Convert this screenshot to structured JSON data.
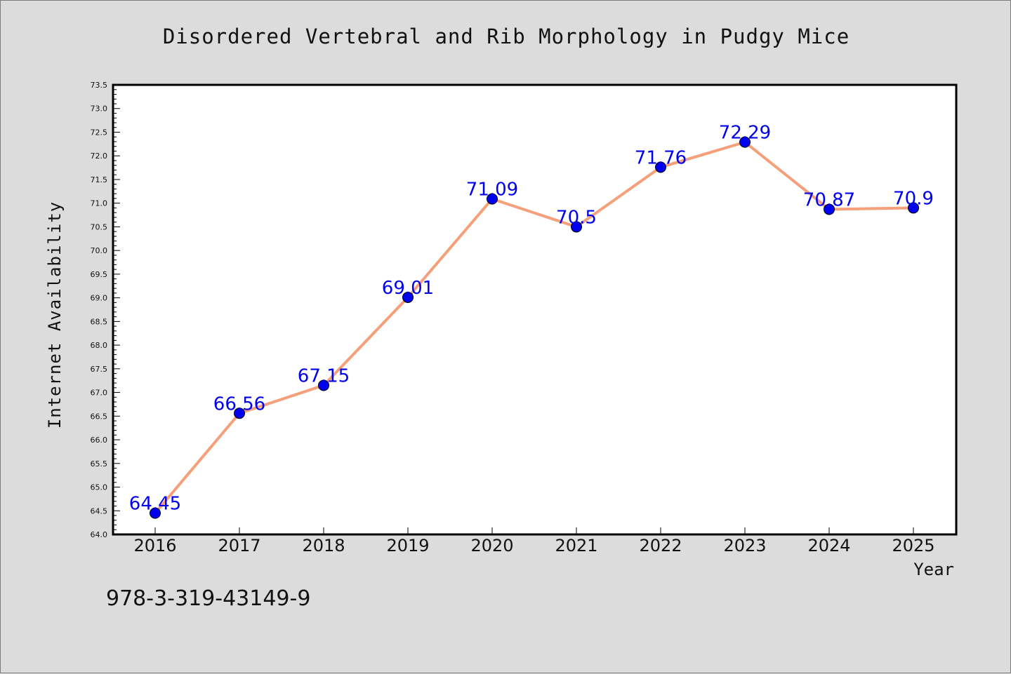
{
  "page": {
    "footer_code": "978-3-319-43149-9"
  },
  "chart_data": {
    "type": "line",
    "title": "Disordered Vertebral and Rib Morphology in Pudgy Mice",
    "xlabel": "Year",
    "ylabel": "Internet Availability",
    "categories": [
      "2016",
      "2017",
      "2018",
      "2019",
      "2020",
      "2021",
      "2022",
      "2023",
      "2024",
      "2025"
    ],
    "series": [
      {
        "values": [
          64.45,
          66.56,
          67.15,
          69.01,
          71.09,
          70.5,
          71.76,
          72.29,
          70.87,
          70.9
        ],
        "labels": [
          "64.45",
          "66.56",
          "67.15",
          "69.01",
          "71.09",
          "70.5",
          "71.76",
          "72.29",
          "70.87",
          "70.9"
        ],
        "line_color": "#f5a07a",
        "marker_color": "#0000ee",
        "label_color": "#0000ee"
      }
    ],
    "ylim": [
      64.0,
      73.5
    ],
    "yticks": [
      "64.0",
      "64.5",
      "65.0",
      "65.5",
      "66.0",
      "66.5",
      "67.0",
      "67.5",
      "68.0",
      "68.5",
      "69.0",
      "69.5",
      "70.0",
      "70.5",
      "71.0",
      "71.5",
      "72.0",
      "72.5",
      "73.0",
      "73.5"
    ],
    "grid": false,
    "legend": "none",
    "plot_background": "#ffffff",
    "page_background": "#dcdcdc"
  }
}
